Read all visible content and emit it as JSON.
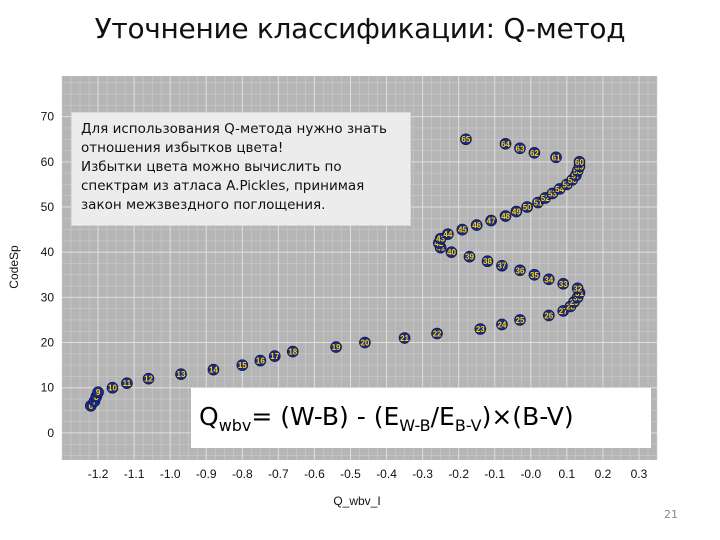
{
  "slide": {
    "title": "Уточнение классификации: Q-метод",
    "number": "21",
    "callout_lines": [
      "Для использования Q-метода нужно знать",
      "отношения избытков цвета!",
      "Избытки цвета можно вычислить по",
      "спектрам из атласа A.Pickles, принимая",
      "закон межзвездного поглощения."
    ],
    "formula": {
      "q": "Q",
      "q_sub": "wbv",
      "part1": "= (W-B) - (E",
      "e1_sub": "W-B",
      "slash": "/E",
      "e2_sub": "B-V",
      "part2": ")×(B-V)"
    }
  },
  "chart_data": {
    "type": "scatter",
    "xlabel": "Q_wbv_I",
    "ylabel": "CodeSp",
    "xlim": [
      -1.3,
      0.35
    ],
    "ylim": [
      -6,
      79
    ],
    "xticks": [
      -1.2,
      -1.1,
      -1.0,
      -0.9,
      -0.8,
      -0.7,
      -0.6,
      -0.5,
      -0.4,
      -0.3,
      -0.2,
      -0.1,
      0.0,
      0.1,
      0.2,
      0.3
    ],
    "xtick_labels": [
      "-1.2",
      "-1.1",
      "-1.0",
      "-0.9",
      "-0.8",
      "-0.7",
      "-0.6",
      "-0.5",
      "-0.4",
      "-0.3",
      "-0.2",
      "-0.1",
      "-0.0",
      "0.1",
      "0.2",
      "0.3"
    ],
    "yticks": [
      0,
      10,
      20,
      30,
      40,
      50,
      60,
      70
    ],
    "ytick_labels": [
      "0",
      "10",
      "20",
      "30",
      "40",
      "50",
      "60",
      "70"
    ],
    "grid": true,
    "colors": {
      "plot_bg": "#b5b5b5",
      "grid": "#d0d0d0",
      "marker": "#1a2a8c",
      "label": "#ffd400"
    },
    "points": [
      {
        "x": -1.22,
        "y": 6,
        "label": "6"
      },
      {
        "x": -1.21,
        "y": 7,
        "label": "7"
      },
      {
        "x": -1.205,
        "y": 8,
        "label": "8"
      },
      {
        "x": -1.2,
        "y": 9,
        "label": "9"
      },
      {
        "x": -1.16,
        "y": 10,
        "label": "10"
      },
      {
        "x": -1.12,
        "y": 11,
        "label": "11"
      },
      {
        "x": -1.06,
        "y": 12,
        "label": "12"
      },
      {
        "x": -0.97,
        "y": 13,
        "label": "13"
      },
      {
        "x": -0.88,
        "y": 14,
        "label": "14"
      },
      {
        "x": -0.8,
        "y": 15,
        "label": "15"
      },
      {
        "x": -0.75,
        "y": 16,
        "label": "16"
      },
      {
        "x": -0.71,
        "y": 17,
        "label": "17"
      },
      {
        "x": -0.66,
        "y": 18,
        "label": "18"
      },
      {
        "x": -0.54,
        "y": 19,
        "label": "19"
      },
      {
        "x": -0.46,
        "y": 20,
        "label": "20"
      },
      {
        "x": -0.35,
        "y": 21,
        "label": "21"
      },
      {
        "x": -0.26,
        "y": 22,
        "label": "22"
      },
      {
        "x": -0.14,
        "y": 23,
        "label": "23"
      },
      {
        "x": -0.08,
        "y": 24,
        "label": "24"
      },
      {
        "x": -0.03,
        "y": 25,
        "label": "25"
      },
      {
        "x": 0.05,
        "y": 26,
        "label": "26"
      },
      {
        "x": 0.09,
        "y": 27,
        "label": "27"
      },
      {
        "x": 0.11,
        "y": 28,
        "label": "28"
      },
      {
        "x": 0.12,
        "y": 29,
        "label": "29"
      },
      {
        "x": 0.13,
        "y": 30,
        "label": "30"
      },
      {
        "x": 0.135,
        "y": 31,
        "label": "31"
      },
      {
        "x": 0.13,
        "y": 32,
        "label": "32"
      },
      {
        "x": 0.09,
        "y": 33,
        "label": "33"
      },
      {
        "x": 0.05,
        "y": 34,
        "label": "34"
      },
      {
        "x": 0.01,
        "y": 35,
        "label": "35"
      },
      {
        "x": -0.03,
        "y": 36,
        "label": "36"
      },
      {
        "x": -0.08,
        "y": 37,
        "label": "37"
      },
      {
        "x": -0.12,
        "y": 38,
        "label": "38"
      },
      {
        "x": -0.17,
        "y": 39,
        "label": "39"
      },
      {
        "x": -0.22,
        "y": 40,
        "label": "40"
      },
      {
        "x": -0.25,
        "y": 41,
        "label": "41"
      },
      {
        "x": -0.255,
        "y": 42,
        "label": "42"
      },
      {
        "x": -0.25,
        "y": 43,
        "label": "43"
      },
      {
        "x": -0.23,
        "y": 44,
        "label": "44"
      },
      {
        "x": -0.19,
        "y": 45,
        "label": "45"
      },
      {
        "x": -0.15,
        "y": 46,
        "label": "46"
      },
      {
        "x": -0.11,
        "y": 47,
        "label": "47"
      },
      {
        "x": -0.07,
        "y": 48,
        "label": "48"
      },
      {
        "x": -0.04,
        "y": 49,
        "label": "49"
      },
      {
        "x": -0.01,
        "y": 50,
        "label": "50"
      },
      {
        "x": 0.02,
        "y": 51,
        "label": "51"
      },
      {
        "x": 0.04,
        "y": 52,
        "label": "52"
      },
      {
        "x": 0.06,
        "y": 53,
        "label": "53"
      },
      {
        "x": 0.08,
        "y": 54,
        "label": "54"
      },
      {
        "x": 0.1,
        "y": 55,
        "label": "55"
      },
      {
        "x": 0.115,
        "y": 56,
        "label": "56"
      },
      {
        "x": 0.125,
        "y": 57,
        "label": "57"
      },
      {
        "x": 0.13,
        "y": 58,
        "label": "58"
      },
      {
        "x": 0.135,
        "y": 59,
        "label": "59"
      },
      {
        "x": 0.135,
        "y": 60,
        "label": "60"
      },
      {
        "x": 0.07,
        "y": 61,
        "label": "61"
      },
      {
        "x": 0.01,
        "y": 62,
        "label": "62"
      },
      {
        "x": -0.03,
        "y": 63,
        "label": "63"
      },
      {
        "x": -0.07,
        "y": 64,
        "label": "64"
      },
      {
        "x": -0.18,
        "y": 65,
        "label": "65"
      }
    ]
  }
}
